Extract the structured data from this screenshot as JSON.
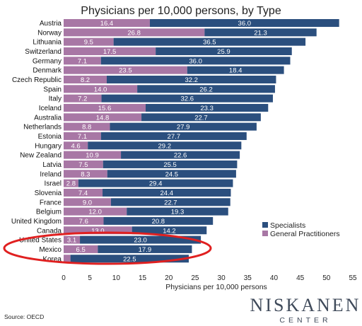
{
  "chart_data": {
    "type": "bar",
    "orientation": "horizontal",
    "stacked": true,
    "title": "Physicians per 10,000 persons, by Type",
    "xlabel": "Physicians per 10,000 persons",
    "ylabel": "",
    "xlim": [
      0,
      55
    ],
    "xticks": [
      0,
      5,
      10,
      15,
      20,
      25,
      30,
      35,
      40,
      45,
      50,
      55
    ],
    "grid": false,
    "legend_position": "right",
    "categories": [
      "Austria",
      "Norway",
      "Lithuania",
      "Switzerland",
      "Germany",
      "Denmark",
      "Czech Republic",
      "Spain",
      "Italy",
      "Iceland",
      "Australia",
      "Netherlands",
      "Estonia",
      "Hungary",
      "New Zealand",
      "Latvia",
      "Ireland",
      "Israel",
      "Slovenia",
      "France",
      "Belgium",
      "United Kingdom",
      "Canada",
      "United States",
      "Mexico",
      "Korea"
    ],
    "series": [
      {
        "name": "General Practitioners",
        "color": "#a877a5",
        "values": [
          16.4,
          26.8,
          9.5,
          17.5,
          7.1,
          23.5,
          8.2,
          14.0,
          7.2,
          15.6,
          14.8,
          8.8,
          7.1,
          4.6,
          10.9,
          7.5,
          8.3,
          2.8,
          7.4,
          9.0,
          12.0,
          7.6,
          13.0,
          3.1,
          6.5,
          1.3
        ]
      },
      {
        "name": "Specialists",
        "color": "#2b4f7e",
        "values": [
          36.0,
          21.3,
          36.5,
          25.9,
          36.0,
          18.4,
          32.2,
          26.2,
          32.6,
          23.3,
          22.7,
          27.9,
          27.7,
          29.2,
          22.6,
          25.5,
          24.5,
          29.4,
          24.4,
          22.7,
          19.3,
          20.8,
          14.2,
          23.0,
          17.9,
          22.5
        ]
      }
    ],
    "legend": [
      "Specialists",
      "General Practitioners"
    ],
    "highlight": {
      "category": "United States",
      "shape": "ellipse",
      "color": "#e02020"
    }
  },
  "source": "Source: OECD",
  "logo": {
    "line1": "NISKANEN",
    "line2": "CENTER"
  }
}
